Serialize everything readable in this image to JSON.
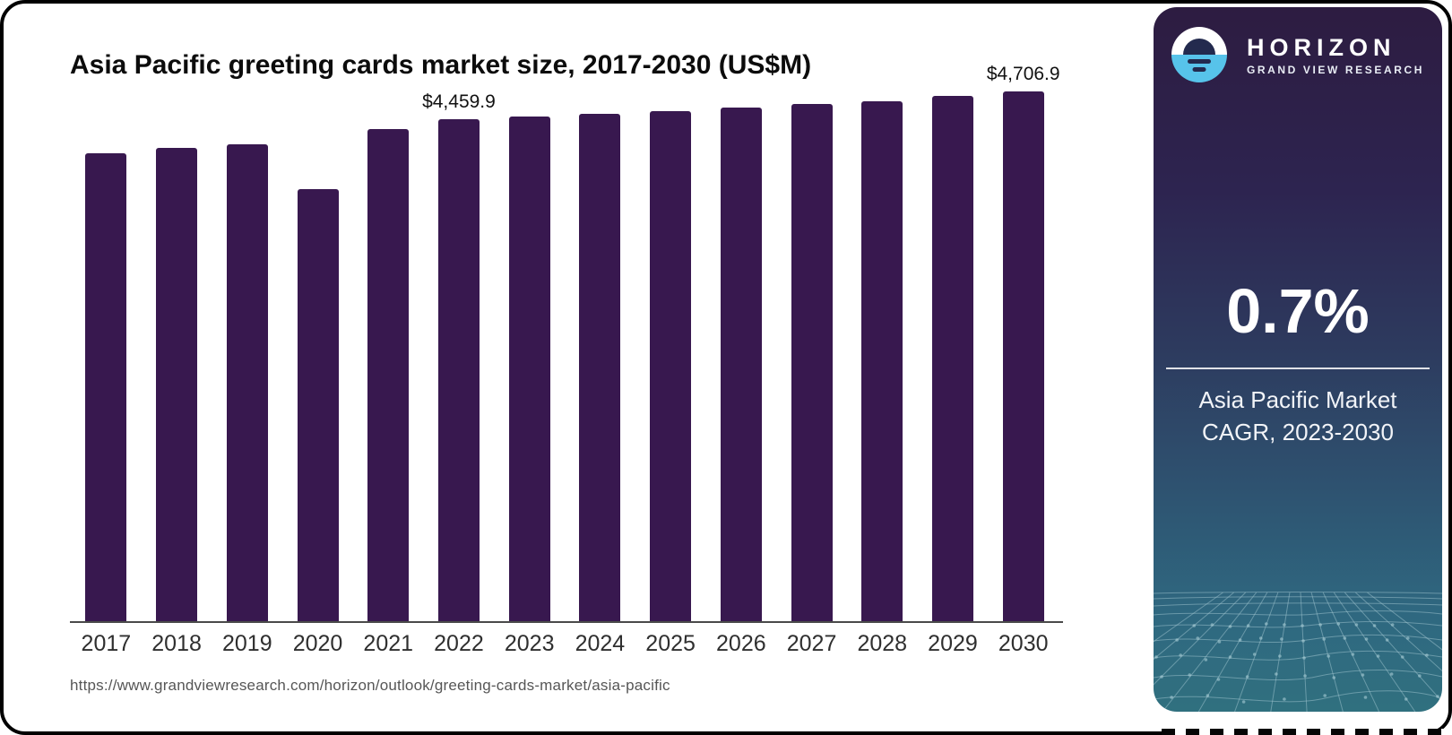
{
  "chart_data": {
    "type": "bar",
    "title": "Asia Pacific greeting cards market size, 2017-2030 (US$M)",
    "categories": [
      "2017",
      "2018",
      "2019",
      "2020",
      "2021",
      "2022",
      "2023",
      "2024",
      "2025",
      "2026",
      "2027",
      "2028",
      "2029",
      "2030"
    ],
    "values": [
      4160,
      4203,
      4240,
      3841,
      4373,
      4459.9,
      4483,
      4510,
      4533,
      4566,
      4598,
      4621,
      4668,
      4706.9
    ],
    "data_labels": {
      "2022": "$4,459.9",
      "2030": "$4,706.9"
    },
    "xlabel": "",
    "ylabel": "",
    "ylim": [
      0,
      4800
    ],
    "grid": false,
    "value_axis_hidden": true,
    "legend": "none",
    "bar_color": "#38184f"
  },
  "chart": {
    "source_url": "https://www.grandviewresearch.com/horizon/outlook/greeting-cards-market/asia-pacific"
  },
  "panel": {
    "brand": {
      "name": "HORIZON",
      "subtitle": "GRAND VIEW RESEARCH",
      "logo_icon": "horizon-sunset-sphere-icon",
      "logo_blue": "#57c3ea",
      "logo_navy": "#232a4e"
    },
    "cagr": {
      "value": "0.7%",
      "caption_line1": "Asia Pacific Market",
      "caption_line2": "CAGR, 2023-2030"
    },
    "colors": {
      "gradient_top": "#2d1c41",
      "gradient_bottom": "#30707f",
      "mesh_line": "#a3c8d1"
    }
  }
}
